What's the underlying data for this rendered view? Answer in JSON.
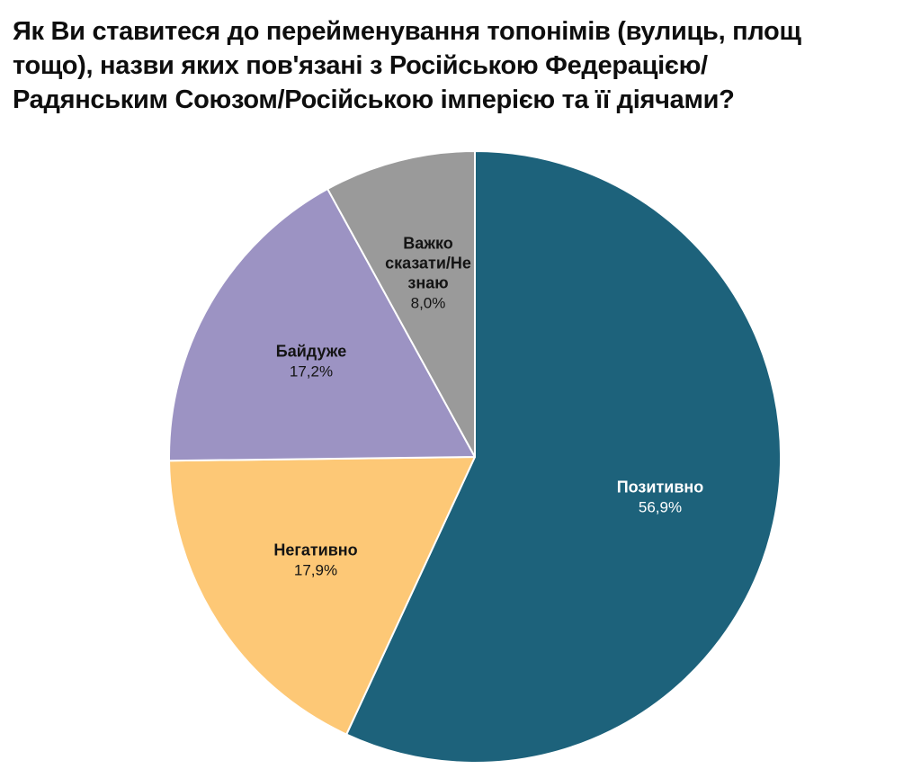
{
  "chart_data": {
    "type": "pie",
    "title": "Як Ви ставитеся до перейменування топонімів (вулиць, площ тощо), назви яких пов'язані з Російською Федерацією/Радянським Союзом/Російською імперією та її діячами?",
    "title_lines": [
      "Як Ви ставитеся до перейменування топонімів (вулиць, площ",
      "тощо), назви яких пов'язані з Російською Федерацією/",
      "Радянським Союзом/Російською імперією та її діячами?"
    ],
    "start_angle_deg": 0,
    "direction": "clockwise",
    "legend": "none",
    "background_color": "#ffffff",
    "separator_color": "#ffffff",
    "title_color": "#0e0e0e",
    "slices": [
      {
        "name": "Позитивно",
        "name_lines": [
          "Позитивно"
        ],
        "value": 56.9,
        "value_label": "56,9%",
        "color": "#1d627b",
        "label_color": "#ffffff"
      },
      {
        "name": "Негативно",
        "name_lines": [
          "Негативно"
        ],
        "value": 17.9,
        "value_label": "17,9%",
        "color": "#fdc876",
        "label_color": "#141414"
      },
      {
        "name": "Байдуже",
        "name_lines": [
          "Байдуже"
        ],
        "value": 17.2,
        "value_label": "17,2%",
        "color": "#9c93c3",
        "label_color": "#141414"
      },
      {
        "name": "Важко сказати/Не знаю",
        "name_lines": [
          "Важко",
          "сказати/Не",
          "знаю"
        ],
        "value": 8.0,
        "value_label": "8,0%",
        "color": "#9a9a9a",
        "label_color": "#141414"
      }
    ]
  }
}
